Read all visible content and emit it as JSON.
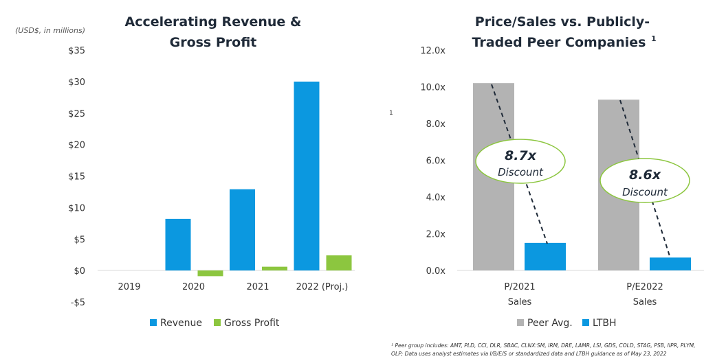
{
  "chart_data": [
    {
      "type": "bar",
      "title_lines": [
        "Accelerating Revenue &",
        "Gross Profit"
      ],
      "ylabel": "(USD$, in millions)",
      "categories": [
        "2019",
        "2020",
        "2021",
        "2022 (Proj.)"
      ],
      "series": [
        {
          "name": "Revenue",
          "color": "#0b98e0",
          "values": [
            0,
            8.2,
            12.9,
            30.0
          ]
        },
        {
          "name": "Gross Profit",
          "color": "#8cc63f",
          "values": [
            0,
            -0.9,
            0.6,
            2.4
          ]
        }
      ],
      "ylim": [
        -5,
        35
      ],
      "yticks": [
        35,
        30,
        25,
        20,
        15,
        10,
        5,
        0,
        -5
      ],
      "ytick_labels": [
        "$35",
        "$30",
        "$25",
        "$20",
        "$15",
        "$10",
        "$5",
        "$0",
        "-$5"
      ],
      "grid": false,
      "legend": "bottom"
    },
    {
      "type": "bar",
      "title_lines": [
        "Price/Sales vs. Publicly-",
        "Traded Peer Companies"
      ],
      "title_footnote": "1",
      "categories": [
        [
          "P/2021",
          "Sales"
        ],
        [
          "P/E2022",
          "Sales"
        ]
      ],
      "series": [
        {
          "name": "Peer Avg.",
          "color": "#b3b3b3",
          "values": [
            10.2,
            9.3
          ]
        },
        {
          "name": "LTBH",
          "color": "#0b98e0",
          "values": [
            1.5,
            0.7
          ]
        }
      ],
      "ylim": [
        0,
        12
      ],
      "yticks": [
        12,
        10,
        8,
        6,
        4,
        2,
        0
      ],
      "ytick_labels": [
        "12.0x",
        "10.0x",
        "8.0x",
        "6.0x",
        "4.0x",
        "2.0x",
        "0.0x"
      ],
      "annotations": [
        {
          "value": "8.7x",
          "label": "Discount"
        },
        {
          "value": "8.6x",
          "label": "Discount"
        }
      ],
      "annotation_color": "#8cc63f",
      "grid": false,
      "legend": "bottom"
    }
  ],
  "stray_marker": "1",
  "footnote_lines": [
    "¹ Peer group includes: AMT, PLD, CCI, DLR, SBAC, CLNX:SM, IRM, DRE, LAMR, LSI, GDS, COLD, STAG, PSB, IIPR, PLYM,",
    "OLP; Data uses analyst estimates via I/B/E/S or standardized data and LTBH guidance as of May 23, 2022"
  ]
}
